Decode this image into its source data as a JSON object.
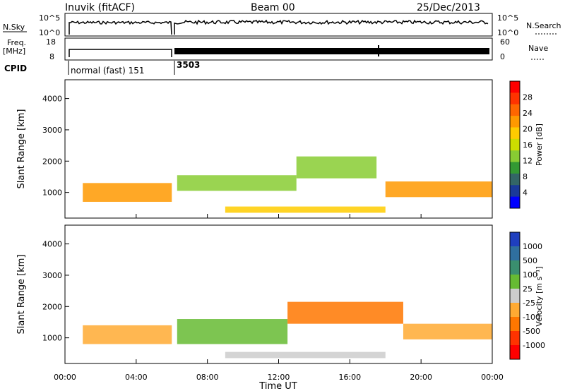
{
  "header": {
    "station": "Inuvik (fitACF)",
    "beam": "Beam 00",
    "date": "25/Dec/2013"
  },
  "strip_panels": {
    "noise": {
      "left_label": "N.Sky",
      "left_ticks": [
        "10^5",
        "10^0"
      ],
      "right_label": "N.Search",
      "right_ticks": [
        "10^5",
        "10^0"
      ]
    },
    "freq": {
      "left_label_1": "Freq.",
      "left_label_2": "[MHz]",
      "left_ticks": [
        "18",
        "8"
      ],
      "right_label": "Nave",
      "right_ticks": [
        "60",
        "0"
      ]
    },
    "cpid": {
      "label": "CPID",
      "segments": [
        "normal (fast) 151",
        "3503"
      ]
    }
  },
  "colorbars": {
    "power": {
      "label": "Power [dB]",
      "ticks": [
        "28",
        "24",
        "20",
        "16",
        "12",
        "8",
        "4"
      ],
      "colors": [
        "#ff0000",
        "#ff3300",
        "#ff6600",
        "#ff9900",
        "#ffcc00",
        "#ccdd00",
        "#88cc33",
        "#339933",
        "#336666",
        "#1a3a99",
        "#0000ff"
      ]
    },
    "velocity": {
      "label": "Velocity [m s⁻¹]",
      "ticks": [
        "1000",
        "500",
        "100",
        "25",
        "-25",
        "-100",
        "-500",
        "-1000"
      ],
      "colors": [
        "#1f3fbf",
        "#2f6f9f",
        "#3a8f6f",
        "#66bb33",
        "#cccccc",
        "#ffaa33",
        "#ff7700",
        "#ff3300",
        "#ff0000"
      ]
    }
  },
  "chart_data": [
    {
      "type": "heatmap",
      "title": "Power",
      "xlabel": "Time UT",
      "ylabel": "Slant Range [km]",
      "x_ticks": [
        "00:00",
        "04:00",
        "08:00",
        "12:00",
        "16:00",
        "20:00",
        "00:00"
      ],
      "y_ticks": [
        "1000",
        "2000",
        "3000",
        "4000"
      ],
      "xlim_hours": [
        0,
        24
      ],
      "ylim_km": [
        180,
        4600
      ],
      "zlim_db": [
        0,
        32
      ],
      "data_gap_hours": 6.1,
      "bands": [
        {
          "t0": 1.0,
          "t1": 6.0,
          "r_center": 1000,
          "thickness": 600,
          "value": 22
        },
        {
          "t0": 6.3,
          "t1": 13.0,
          "r_center": 1300,
          "thickness": 500,
          "value": 14
        },
        {
          "t0": 13.0,
          "t1": 17.5,
          "r_center": 1800,
          "thickness": 700,
          "value": 12
        },
        {
          "t0": 9.0,
          "t1": 18.0,
          "r_center": 450,
          "thickness": 200,
          "value": 20
        },
        {
          "t0": 18.0,
          "t1": 24.0,
          "r_center": 1100,
          "thickness": 500,
          "value": 24
        }
      ]
    },
    {
      "type": "heatmap",
      "title": "Velocity",
      "xlabel": "Time UT",
      "ylabel": "Slant Range [km]",
      "x_ticks": [
        "00:00",
        "04:00",
        "08:00",
        "12:00",
        "16:00",
        "20:00",
        "00:00"
      ],
      "y_ticks": [
        "1000",
        "2000",
        "3000",
        "4000"
      ],
      "xlim_hours": [
        0,
        24
      ],
      "ylim_km": [
        180,
        4600
      ],
      "zlim_ms": [
        -1000,
        1000
      ],
      "bands": [
        {
          "t0": 1.0,
          "t1": 6.0,
          "r_center": 1100,
          "thickness": 600,
          "value": -200
        },
        {
          "t0": 6.3,
          "t1": 12.5,
          "r_center": 1200,
          "thickness": 800,
          "value": 300
        },
        {
          "t0": 12.5,
          "t1": 19.0,
          "r_center": 1800,
          "thickness": 700,
          "value": -600
        },
        {
          "t0": 19.0,
          "t1": 24.0,
          "r_center": 1200,
          "thickness": 500,
          "value": -300
        },
        {
          "t0": 9.0,
          "t1": 18.0,
          "r_center": 450,
          "thickness": 200,
          "value": 100
        }
      ]
    }
  ]
}
